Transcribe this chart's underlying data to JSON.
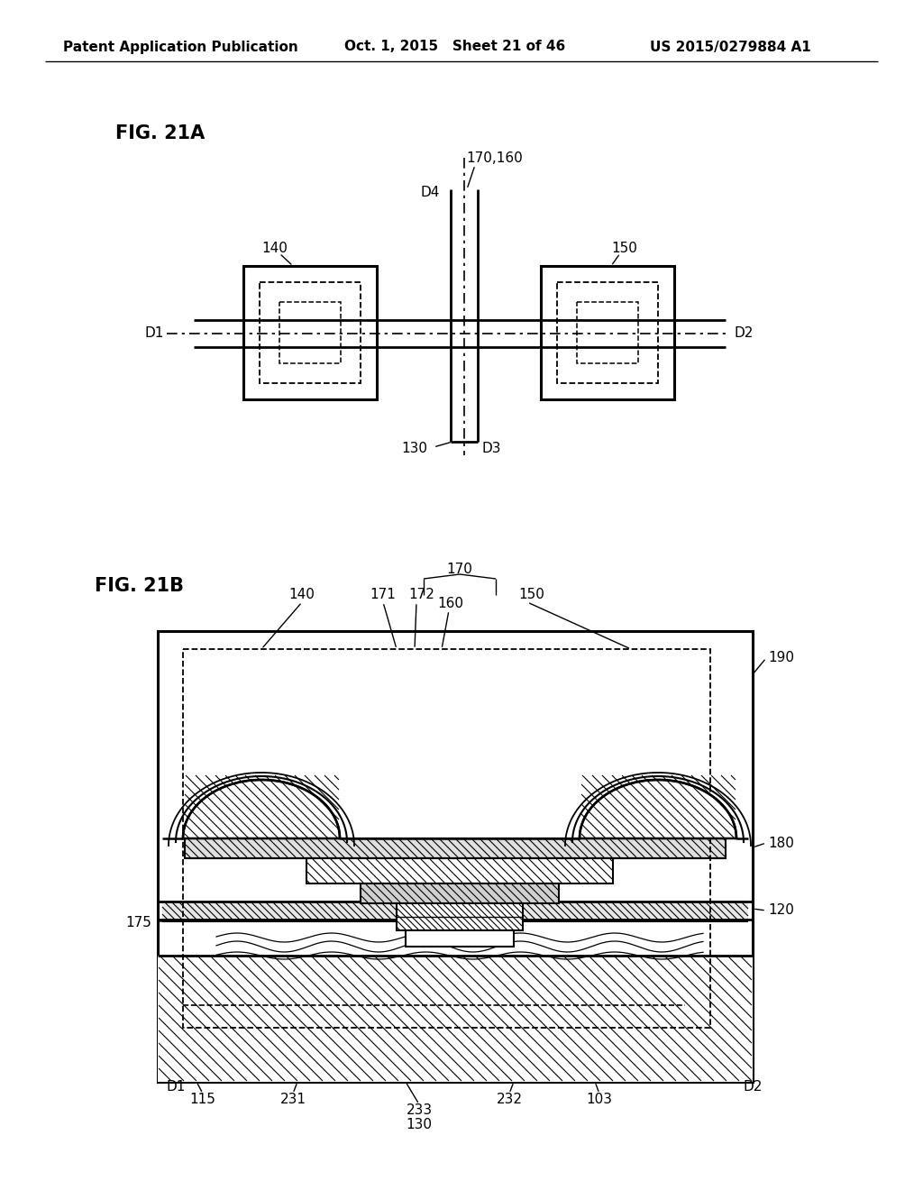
{
  "header_left": "Patent Application Publication",
  "header_mid": "Oct. 1, 2015   Sheet 21 of 46",
  "header_right": "US 2015/0279884 A1",
  "fig21a_label": "FIG. 21A",
  "fig21b_label": "FIG. 21B",
  "bg_color": "#ffffff",
  "line_color": "#000000"
}
